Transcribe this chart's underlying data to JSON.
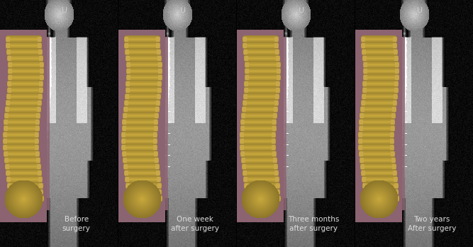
{
  "figure_width": 6.67,
  "figure_height": 3.49,
  "dpi": 100,
  "background_color": "#000000",
  "panels": [
    {
      "label": "Before\nsurgery",
      "has_hardware": false
    },
    {
      "label": "One week\nafter surgery",
      "has_hardware": true
    },
    {
      "label": "Three months\nafter surgery",
      "has_hardware": true
    },
    {
      "label": "Two years\nAfter surgery",
      "has_hardware": true
    }
  ],
  "label_color": "#dddddd",
  "label_fontsize": 7.5,
  "u_label": "U",
  "u_fontsize": 8,
  "u_color": "#cccccc",
  "mauve_color": "#8B6472",
  "spine_color": "#c8a84b",
  "xray_dark": 0.05,
  "xray_mid": 0.5,
  "xray_bright": 0.9
}
